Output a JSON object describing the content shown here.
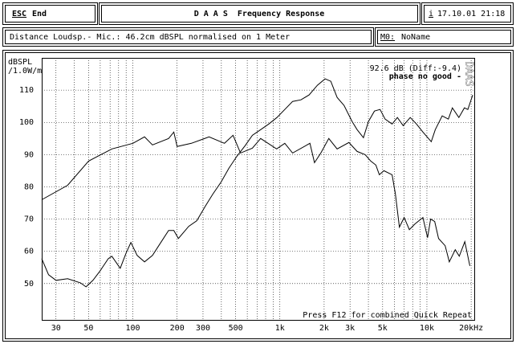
{
  "header": {
    "esc": "ESC",
    "end": "End",
    "title": "D A A S  Frequency Response",
    "info_key": "i",
    "datetime": "17.10.01 21:18"
  },
  "info": {
    "description": "Distance Loudsp.- Mic.: 46.2cm dBSPL normalised on 1 Meter",
    "memory_key": "M0:",
    "memory_name": "NoName"
  },
  "chart_data": {
    "type": "line",
    "ylabel": "dBSPL",
    "ylabel_unit": "/1.0W/m",
    "annotations": [
      "92.6 dB (Diff:-9.4)",
      "phase no good -"
    ],
    "footer": "Press F12 for combined Quick Repeat",
    "watermark": "DAAS",
    "log_x": true,
    "grid": true,
    "xlim": [
      24,
      21000
    ],
    "ylim": [
      38.75,
      120
    ],
    "xticks": [
      30,
      50,
      100,
      200,
      300,
      500,
      {
        "value": 1000,
        "label": "1k"
      },
      {
        "value": 2000,
        "label": "2k"
      },
      {
        "value": 3000,
        "label": "3k"
      },
      {
        "value": 5000,
        "label": "5k"
      },
      {
        "value": 10000,
        "label": "10k"
      },
      {
        "value": 20000,
        "label": "20kHz"
      }
    ],
    "x_minor_grid": [
      40,
      60,
      70,
      80,
      90,
      400,
      600,
      700,
      800,
      900,
      4000,
      6000,
      7000,
      8000,
      9000
    ],
    "yticks": [
      50,
      60,
      70,
      80,
      90,
      100,
      110
    ],
    "series": [
      {
        "color": "#000000",
        "x": [
          24,
          36,
          50,
          72,
          100,
          120,
          136,
          175,
          190,
          200,
          250,
          330,
          420,
          480,
          540,
          650,
          740,
          950,
          1080,
          1220,
          1600,
          1720,
          1900,
          2150,
          2450,
          2950,
          3350,
          3800,
          4150,
          4500,
          4750,
          5100,
          5800,
          6100,
          6500,
          7000,
          7600,
          8300,
          9400,
          10100,
          10600,
          11300,
          12000,
          13300,
          14200,
          15600,
          16600,
          18100,
          19600
        ],
        "values": [
          76,
          80.5,
          88,
          91.75,
          93.5,
          95.5,
          93,
          95,
          97,
          92.5,
          93.5,
          95.5,
          93.5,
          96,
          90.5,
          92,
          95,
          91.75,
          93.5,
          90.5,
          93.5,
          87.5,
          90.5,
          95,
          91.75,
          93.75,
          91,
          90,
          88,
          86.75,
          83.75,
          85,
          83.75,
          78,
          67.5,
          70.5,
          66.75,
          68.5,
          70.5,
          64.25,
          70,
          69.25,
          64,
          61.75,
          56.75,
          60.5,
          58.5,
          63,
          55.5
        ]
      },
      {
        "color": "#000000",
        "x": [
          24,
          26.7,
          30,
          36,
          44,
          48,
          53.5,
          60,
          68,
          72,
          82,
          90,
          97,
          107,
          120,
          136,
          155,
          175,
          190,
          204,
          240,
          272,
          311,
          350,
          398,
          450,
          510,
          580,
          650,
          740,
          840,
          955,
          1080,
          1220,
          1390,
          1580,
          1800,
          2030,
          2220,
          2450,
          2730,
          3100,
          3350,
          3700,
          4000,
          4400,
          4800,
          5200,
          5800,
          6300,
          6900,
          7700,
          8500,
          9400,
          10700,
          11400,
          12700,
          14000,
          14900,
          16500,
          18000,
          19000,
          20500
        ],
        "values": [
          57.75,
          52.75,
          51,
          51.5,
          50.25,
          49,
          51,
          54,
          57.75,
          58.5,
          54.75,
          59.5,
          62.75,
          58.75,
          56.75,
          58.75,
          62.75,
          66.5,
          66.5,
          64,
          67.75,
          69.5,
          74,
          77.75,
          81.5,
          85.75,
          89.5,
          92.75,
          96,
          97.75,
          99.5,
          101.5,
          104,
          106.5,
          107,
          108.5,
          111.5,
          113.5,
          112.75,
          107.75,
          105.25,
          100.25,
          97.75,
          95.25,
          100.25,
          103.5,
          104,
          101,
          99.5,
          101.5,
          99,
          101.5,
          99.5,
          97,
          94,
          97.75,
          102,
          101,
          104.5,
          101.5,
          104.5,
          104,
          108.5
        ]
      }
    ]
  }
}
